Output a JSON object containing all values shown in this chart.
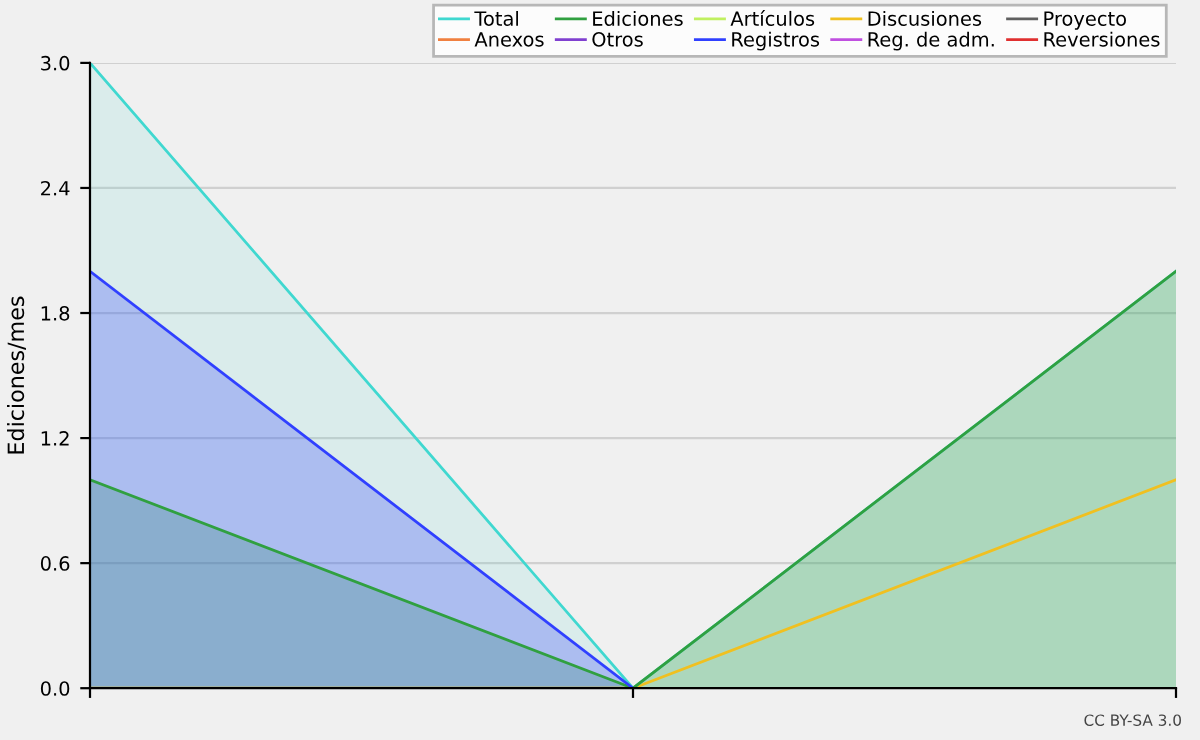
{
  "chart_data": {
    "type": "line",
    "ylabel": "Ediciones/mes",
    "categories": [
      null,
      null,
      null
    ],
    "series": [
      {
        "name": "Total",
        "type": "area",
        "color": "#40d8d0",
        "values": [
          3,
          0,
          2
        ]
      },
      {
        "name": "Ediciones",
        "type": "area",
        "color": "#30a040",
        "values": [
          1,
          0,
          2
        ]
      },
      {
        "name": "Artículos",
        "color": "#c0f060",
        "values": [
          null,
          null,
          null
        ]
      },
      {
        "name": "Discusiones",
        "color": "#f0c020",
        "values": [
          0,
          0,
          1
        ]
      },
      {
        "name": "Proyecto",
        "color": "#606060",
        "values": [
          null,
          null,
          null
        ]
      },
      {
        "name": "Anexos",
        "color": "#f08040",
        "values": [
          null,
          null,
          null
        ]
      },
      {
        "name": "Otros",
        "color": "#8040d0",
        "values": [
          null,
          null,
          null
        ]
      },
      {
        "name": "Registros",
        "type": "area",
        "color": "#3040ff",
        "values": [
          2,
          0,
          null
        ]
      },
      {
        "name": "Reg. de adm.",
        "color": "#c050e0",
        "values": [
          null,
          null,
          null
        ]
      },
      {
        "name": "Reversiones",
        "color": "#e03030",
        "values": [
          null,
          null,
          null
        ]
      }
    ],
    "ylim": [
      0,
      3
    ],
    "yticks": [
      {
        "value": 0,
        "label": "0.0"
      },
      {
        "value": 0.6,
        "label": "0.6"
      },
      {
        "value": 1.2,
        "label": "1.2"
      },
      {
        "value": 1.8,
        "label": "1.8"
      },
      {
        "value": 2.4,
        "label": "2.4"
      },
      {
        "value": 3,
        "label": "3.0"
      }
    ],
    "grid": "y",
    "legend": "top right",
    "annotations": [
      "CC BY-SA 3.0"
    ]
  }
}
